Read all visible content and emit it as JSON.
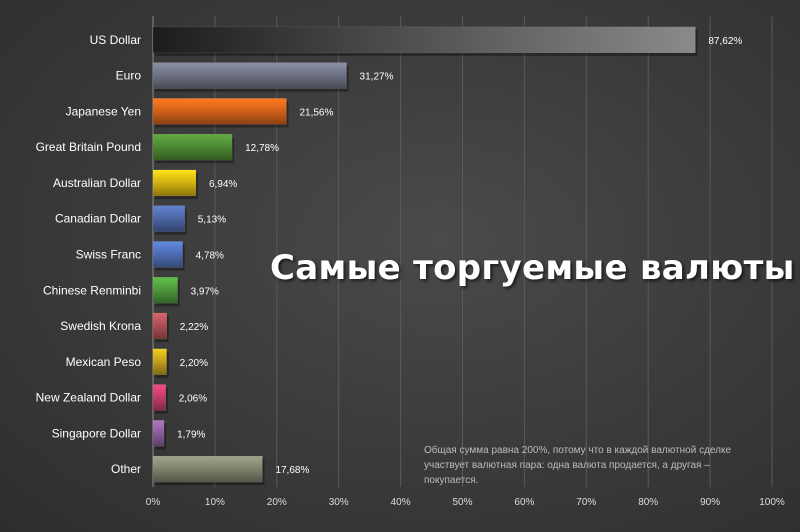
{
  "chart_data": {
    "type": "bar",
    "orientation": "horizontal",
    "categories": [
      "US Dollar",
      "Euro",
      "Japanese Yen",
      "Great Britain Pound",
      "Australian Dollar",
      "Canadian Dollar",
      "Swiss Franc",
      "Chinese Renminbi",
      "Swedish Krona",
      "Mexican Peso",
      "New Zealand Dollar",
      "Singapore Dollar",
      "Other"
    ],
    "values": [
      87.62,
      31.27,
      21.56,
      12.78,
      6.94,
      5.13,
      4.78,
      3.97,
      2.22,
      2.2,
      2.06,
      1.79,
      17.68
    ],
    "value_labels": [
      "87,62%",
      "31,27%",
      "21,56%",
      "12,78%",
      "6,94%",
      "5,13%",
      "4,78%",
      "3,97%",
      "2,22%",
      "2,20%",
      "2,06%",
      "1,79%",
      "17,68%"
    ],
    "colors": [
      "#555555",
      "#6f7385",
      "#d4621a",
      "#4f8a35",
      "#d6b512",
      "#4e68a8",
      "#4e6eb5",
      "#4e9a3c",
      "#b04f55",
      "#c4a31c",
      "#c53d6e",
      "#8c5f9c",
      "#80856e"
    ],
    "xlim": [
      0,
      100
    ],
    "xticks": [
      "0%",
      "10%",
      "20%",
      "30%",
      "40%",
      "50%",
      "60%",
      "70%",
      "80%",
      "90%",
      "100%"
    ],
    "grid": true,
    "title": "Самые торгуемые валюты",
    "note": "Общая сумма равна 200%, потому что в каждой валютной сделке участвует валютная пара: одна валюта продается, а другая – покупается."
  }
}
